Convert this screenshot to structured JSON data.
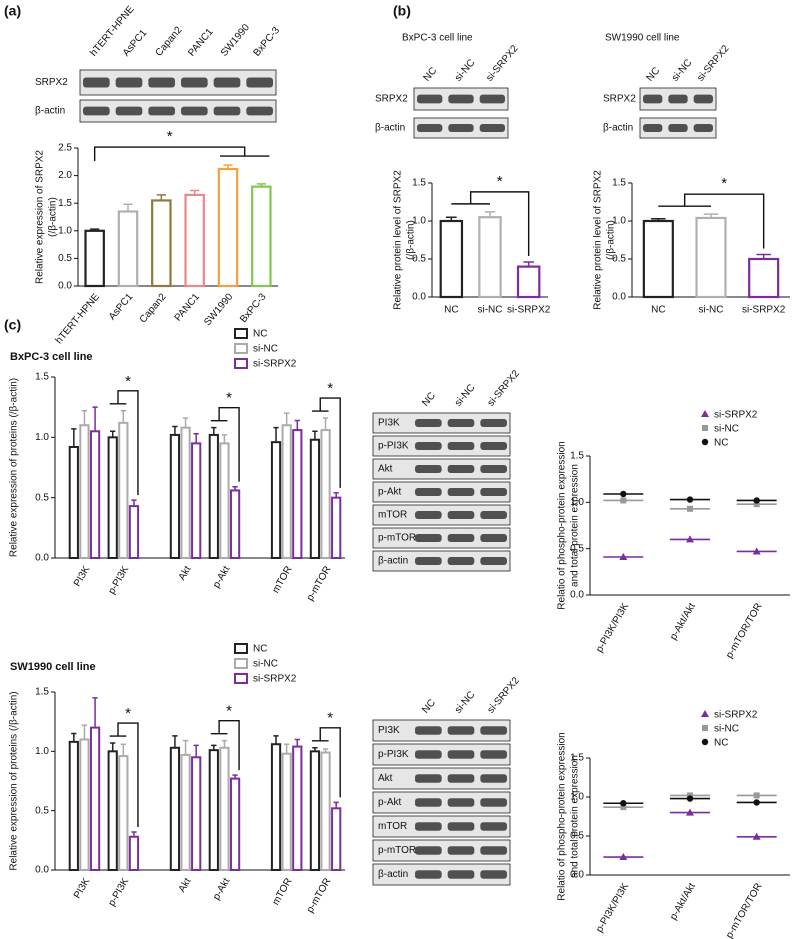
{
  "figure": {
    "panel_labels": [
      "(a)",
      "(b)",
      "(c)"
    ]
  },
  "blots": [
    {
      "lanes": [
        "hTERT-HPNE",
        "AsPC1",
        "Capan2",
        "PANC1",
        "SW1990",
        "BxPC-3"
      ],
      "rows": [
        "SRPX2",
        "β-actin"
      ]
    },
    {
      "title": "BxPC-3 cell line",
      "lanes": [
        "NC",
        "si-NC",
        "si-SRPX2"
      ],
      "rows": [
        "SRPX2",
        "β-actin"
      ]
    },
    {
      "title": "SW1990 cell line",
      "lanes": [
        "NC",
        "si-NC",
        "si-SRPX2"
      ],
      "rows": [
        "SRPX2",
        "β-actin"
      ]
    },
    {
      "lanes": [
        "NC",
        "si-NC",
        "si-SRPX2"
      ],
      "rows": [
        "PI3K",
        "p-PI3K",
        "Akt",
        "p-Akt",
        "mTOR",
        "p-mTOR",
        "β-actin"
      ]
    },
    {
      "lanes": [
        "NC",
        "si-NC",
        "si-SRPX2"
      ],
      "rows": [
        "PI3K",
        "p-PI3K",
        "Akt",
        "p-Akt",
        "mTOR",
        "p-mTOR",
        "β-actin"
      ]
    }
  ],
  "chart_data": [
    {
      "type": "bar",
      "categories": [
        "hTERT-HPNE",
        "AsPC1",
        "Capan2",
        "PANC1",
        "SW1990",
        "BxPC-3"
      ],
      "values": [
        1.0,
        1.35,
        1.55,
        1.65,
        2.12,
        1.8
      ],
      "errors": [
        0.03,
        0.13,
        0.1,
        0.08,
        0.07,
        0.05
      ],
      "colors": [
        "#222222",
        "#b0b0b0",
        "#8c7b3a",
        "#e8888a",
        "#f0a040",
        "#80c850"
      ],
      "y_label": [
        "Relative expression of SRPX2",
        "(/β-actin)"
      ],
      "ylim": [
        0,
        2.5
      ],
      "yticks": [
        {
          "value": 0,
          "label": "0.0"
        },
        0.5,
        {
          "value": 1,
          "label": "1.0"
        },
        1.5,
        {
          "value": 2,
          "label": "2.0"
        },
        2.5
      ],
      "annotation": "*"
    },
    {
      "type": "bar",
      "categories": [
        "NC",
        "si-NC",
        "si-SRPX2"
      ],
      "values": [
        1.0,
        1.05,
        0.4
      ],
      "errors": [
        0.05,
        0.07,
        0.06
      ],
      "colors": [
        "#222222",
        "#b0b0b0",
        "#7b2d9b"
      ],
      "y_label": [
        "Relative protein level of SRPX2",
        "(/β-actin)"
      ],
      "ylim": [
        0,
        1.5
      ],
      "yticks": [
        {
          "value": 0,
          "label": "0.0"
        },
        0.5,
        {
          "value": 1,
          "label": "1.0"
        },
        1.5
      ],
      "annotation": "*"
    },
    {
      "type": "bar",
      "categories": [
        "NC",
        "si-NC",
        "si-SRPX2"
      ],
      "values": [
        1.0,
        1.04,
        0.5
      ],
      "errors": [
        0.03,
        0.05,
        0.06
      ],
      "colors": [
        "#222222",
        "#b0b0b0",
        "#7b2d9b"
      ],
      "y_label": [
        "Relative protein level of SRPX2",
        "(/β-actin)"
      ],
      "ylim": [
        0,
        1.5
      ],
      "yticks": [
        {
          "value": 0,
          "label": "0.0"
        },
        0.5,
        {
          "value": 1,
          "label": "1.0"
        },
        1.5
      ],
      "annotation": "*"
    },
    {
      "type": "bar",
      "title": "BxPC-3 cell line",
      "categories": [
        "PI3K",
        "p-PI3K",
        "Akt",
        "p-Akt",
        "mTOR",
        "p-mTOR"
      ],
      "series": [
        {
          "name": "NC",
          "color": "#222222",
          "values": [
            0.92,
            1.0,
            1.02,
            1.02,
            0.96,
            0.98
          ],
          "errors": [
            0.15,
            0.05,
            0.07,
            0.06,
            0.12,
            0.07
          ]
        },
        {
          "name": "si-NC",
          "color": "#aaaaaa",
          "values": [
            1.1,
            1.12,
            1.08,
            0.95,
            1.1,
            1.06
          ],
          "errors": [
            0.12,
            0.1,
            0.08,
            0.07,
            0.1,
            0.1
          ]
        },
        {
          "name": "si-SRPX2",
          "color": "#7b2d9b",
          "values": [
            1.05,
            0.43,
            0.95,
            0.56,
            1.06,
            0.5
          ],
          "errors": [
            0.2,
            0.05,
            0.08,
            0.03,
            0.08,
            0.04
          ]
        }
      ],
      "y_label": [
        "Relative expression of proteins (/β-actin)"
      ],
      "ylim": [
        0,
        1.5
      ],
      "yticks": [
        {
          "value": 0,
          "label": "0.0"
        },
        0.5,
        {
          "value": 1,
          "label": "1.0"
        },
        1.5
      ],
      "annotation": "*"
    },
    {
      "type": "dot",
      "categories": [
        "p-PI3K/PI3K",
        "p-Akt/Akt",
        "p-mTOR/TOR"
      ],
      "series": [
        {
          "name": "si-SRPX2",
          "color": "#7b2d9b",
          "marker": "triangle",
          "values": [
            0.41,
            0.6,
            0.47
          ]
        },
        {
          "name": "si-NC",
          "color": "#999999",
          "marker": "square",
          "values": [
            1.02,
            0.93,
            0.98
          ]
        },
        {
          "name": "NC",
          "color": "#111111",
          "marker": "circle",
          "values": [
            1.09,
            1.03,
            1.02
          ]
        }
      ],
      "y_label": [
        "Relatio of phospho-protein expression",
        "and total protein expression"
      ],
      "ylim": [
        0,
        1.5
      ],
      "yticks": [
        {
          "value": 0,
          "label": "0.0"
        },
        0.5,
        {
          "value": 1,
          "label": "1.0"
        },
        1.5
      ]
    },
    {
      "type": "bar",
      "title": "SW1990 cell line",
      "categories": [
        "PI3K",
        "p-PI3K",
        "Akt",
        "p-Akt",
        "mTOR",
        "p-mTOR"
      ],
      "series": [
        {
          "name": "NC",
          "color": "#222222",
          "values": [
            1.08,
            1.0,
            1.03,
            1.01,
            1.06,
            1.0
          ],
          "errors": [
            0.07,
            0.07,
            0.1,
            0.04,
            0.07,
            0.03
          ]
        },
        {
          "name": "si-NC",
          "color": "#aaaaaa",
          "values": [
            1.1,
            0.96,
            0.97,
            1.03,
            0.98,
            0.99
          ],
          "errors": [
            0.12,
            0.1,
            0.12,
            0.06,
            0.08,
            0.03
          ]
        },
        {
          "name": "si-SRPX2",
          "color": "#7b2d9b",
          "values": [
            1.2,
            0.28,
            0.95,
            0.77,
            1.04,
            0.52
          ],
          "errors": [
            0.25,
            0.04,
            0.1,
            0.03,
            0.06,
            0.05
          ]
        }
      ],
      "y_label": [
        "Relative expression of proteins (/β-actin)"
      ],
      "ylim": [
        0,
        1.5
      ],
      "yticks": [
        {
          "value": 0,
          "label": "0.0"
        },
        0.5,
        {
          "value": 1,
          "label": "1.0"
        },
        1.5
      ],
      "annotation": "*"
    },
    {
      "type": "dot",
      "categories": [
        "p-PI3K/PI3K",
        "p-Akt/Akt",
        "p-mTOR/TOR"
      ],
      "series": [
        {
          "name": "si-SRPX2",
          "color": "#7b2d9b",
          "marker": "triangle",
          "values": [
            0.23,
            0.8,
            0.49
          ]
        },
        {
          "name": "si-NC",
          "color": "#999999",
          "marker": "square",
          "values": [
            0.87,
            1.02,
            1.02
          ]
        },
        {
          "name": "NC",
          "color": "#111111",
          "marker": "circle",
          "values": [
            0.92,
            0.98,
            0.93
          ]
        }
      ],
      "y_label": [
        "Relatio of phospho-protein expression",
        "and total protein expression"
      ],
      "ylim": [
        0,
        1.5
      ],
      "yticks": [
        {
          "value": 0,
          "label": "0.0"
        },
        0.5,
        {
          "value": 1,
          "label": "1.0"
        },
        1.5
      ]
    }
  ]
}
